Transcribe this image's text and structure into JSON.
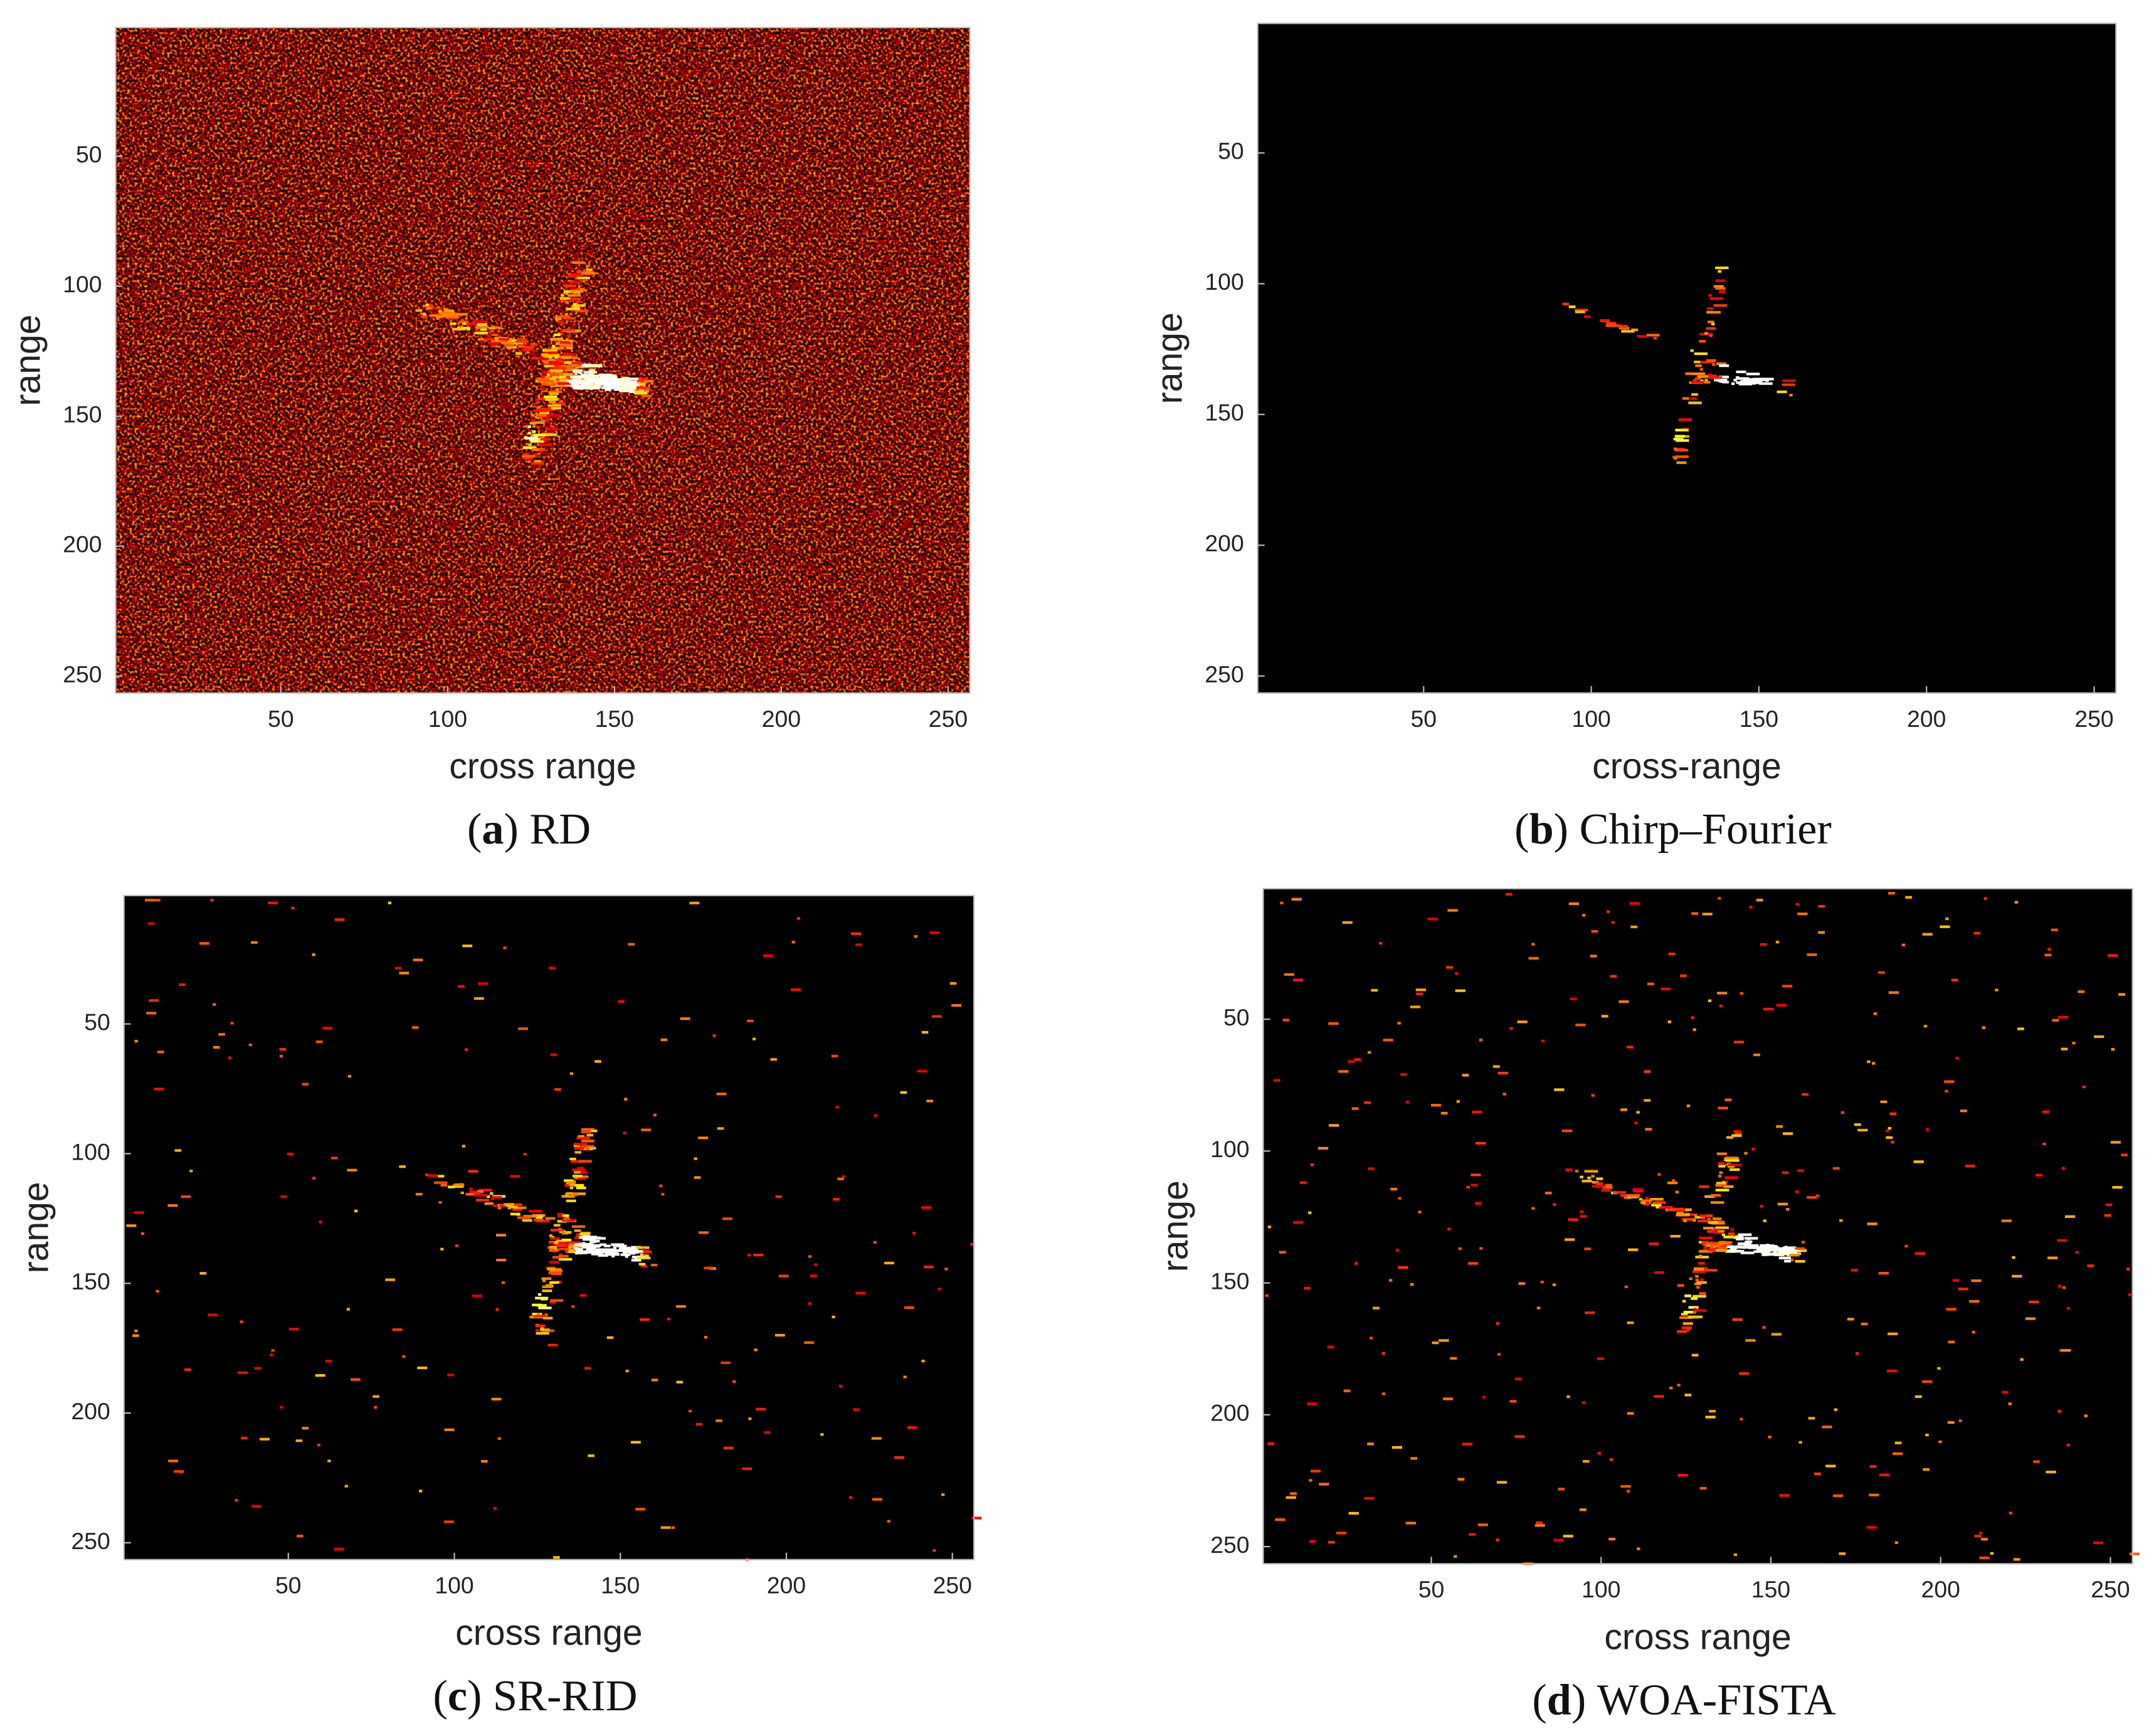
{
  "chart_data": [
    {
      "type": "heatmap",
      "colormap": "hot",
      "y_direction": "reversed",
      "xlabel": "cross range",
      "ylabel": "range",
      "caption_label": "a",
      "caption_text": "RD",
      "xlim": [
        0.5,
        256.5
      ],
      "ylim": [
        0.5,
        256.5
      ],
      "xticks": [
        50,
        100,
        150,
        200,
        250
      ],
      "yticks": [
        50,
        100,
        150,
        200,
        250
      ]
    },
    {
      "type": "heatmap",
      "colormap": "hot",
      "y_direction": "reversed",
      "xlabel": "cross-range",
      "ylabel": "range",
      "caption_label": "b",
      "caption_text": "Chirp–Fourier",
      "xlim": [
        0.5,
        256.5
      ],
      "ylim": [
        0.5,
        256.5
      ],
      "xticks": [
        50,
        100,
        150,
        200,
        250
      ],
      "yticks": [
        50,
        100,
        150,
        200,
        250
      ]
    },
    {
      "type": "heatmap",
      "colormap": "hot",
      "y_direction": "reversed",
      "xlabel": "cross range",
      "ylabel": "range",
      "caption_label": "c",
      "caption_text": "SR-RID",
      "xlim": [
        0.5,
        256.5
      ],
      "ylim": [
        0.5,
        256.5
      ],
      "xticks": [
        50,
        100,
        150,
        200,
        250
      ],
      "yticks": [
        50,
        100,
        150,
        200,
        250
      ]
    },
    {
      "type": "heatmap",
      "colormap": "hot",
      "y_direction": "reversed",
      "xlabel": "cross range",
      "ylabel": "range",
      "caption_label": "d",
      "caption_text": "WOA-FISTA",
      "xlim": [
        0.5,
        256.5
      ],
      "ylim": [
        0.5,
        256.5
      ],
      "xticks": [
        50,
        100,
        150,
        200,
        250
      ],
      "yticks": [
        50,
        100,
        150,
        200,
        250
      ]
    }
  ]
}
